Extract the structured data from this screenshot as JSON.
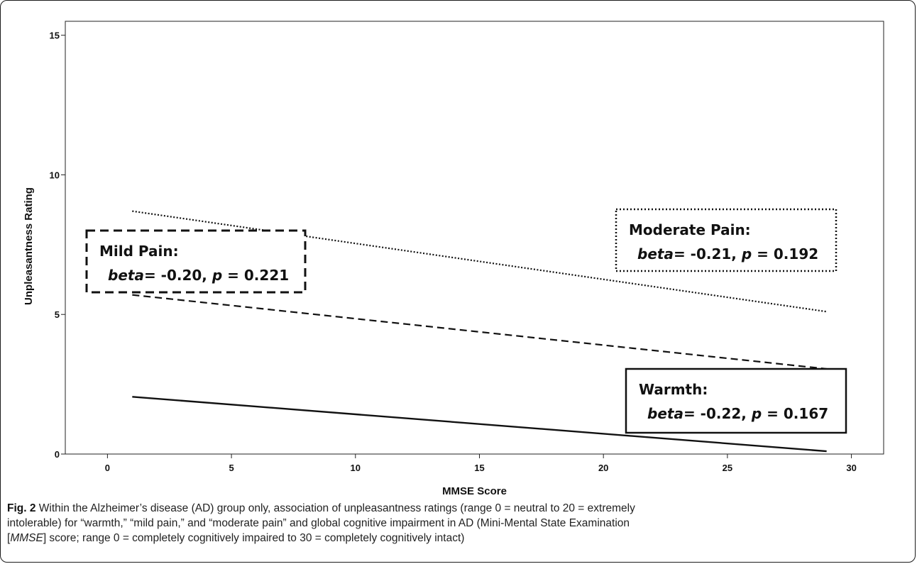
{
  "chart_data": {
    "type": "line",
    "xlabel": "MMSE Score",
    "ylabel": "Unpleasantness Rating",
    "xlim": [
      -1.7,
      31.3
    ],
    "ylim": [
      0,
      15.5
    ],
    "xticks": [
      "0",
      "5",
      "10",
      "15",
      "20",
      "25",
      "30"
    ],
    "yticks": [
      "0",
      "5",
      "10",
      "15"
    ],
    "grid": false,
    "series": [
      {
        "style": "dotted",
        "x": [
          1,
          29
        ],
        "y": [
          8.7,
          5.1
        ]
      },
      {
        "style": "dashed",
        "x": [
          1,
          29
        ],
        "y": [
          5.7,
          3.05
        ]
      },
      {
        "style": "solid",
        "x": [
          1,
          29
        ],
        "y": [
          2.05,
          0.1
        ]
      }
    ],
    "annotations": [
      {
        "style": "dotted",
        "title": "Moderate Pain:",
        "beta_label": "beta",
        "beta": "= -0.21,",
        "p_label": "p",
        "p": "= 0.192"
      },
      {
        "style": "dashed",
        "title": "Mild Pain:",
        "beta_label": "beta",
        "beta": "= -0.20,",
        "p_label": "p",
        "p": "= 0.221"
      },
      {
        "style": "solid",
        "title": "Warmth:",
        "beta_label": "beta",
        "beta": "= -0.22,",
        "p_label": "p",
        "p": "= 0.167"
      }
    ]
  },
  "caption": {
    "label": "Fig. 2",
    "line1": "Within the Alzheimer’s disease (AD) group only, association of unpleasantness ratings (range 0 = neutral to 20 = extremely",
    "line2": "intolerable) for “warmth,” “mild pain,” and “moderate pain” and global cognitive impairment in AD (Mini-Mental State Examination",
    "line3_open": "[",
    "line3_italic": "MMSE",
    "line3_rest": "] score; range 0 = completely cognitively impaired to 30 = completely cognitively intact)"
  }
}
